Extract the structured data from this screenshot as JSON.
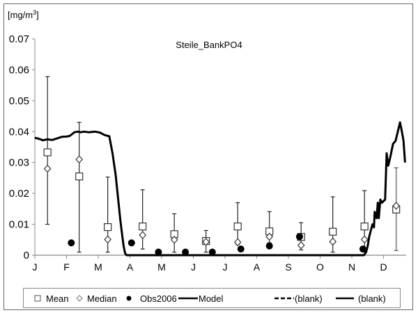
{
  "chart_data": {
    "type": "line",
    "title": "Steile_BankPO4",
    "ylabel": "[mg/m³]",
    "xlabel": "",
    "ylim": [
      0,
      0.07
    ],
    "yticks": [
      "0",
      "0.01",
      "0.02",
      "0.03",
      "0.04",
      "0.05",
      "0.06",
      "0.07"
    ],
    "ytick_values": [
      0,
      0.01,
      0.02,
      0.03,
      0.04,
      0.05,
      0.06,
      0.07
    ],
    "xticks": [
      "J",
      "F",
      "M",
      "A",
      "M",
      "J",
      "J",
      "A",
      "S",
      "O",
      "N",
      "D"
    ],
    "xlim_months": [
      0,
      11.7
    ],
    "grid": false,
    "legend_position": "bottom",
    "legend": [
      "Mean",
      "Median",
      "Obs2006",
      "Model",
      "(blank)",
      "(blank)"
    ],
    "stats": {
      "x_month": [
        0.4,
        1.4,
        2.3,
        3.4,
        4.4,
        5.4,
        6.4,
        7.4,
        8.4,
        9.4,
        10.4,
        11.4
      ],
      "mean": [
        0.0333,
        0.0255,
        0.0091,
        0.0093,
        0.0068,
        0.0046,
        0.0093,
        0.0077,
        0.0059,
        0.0076,
        0.0093,
        0.0148
      ],
      "median": [
        0.028,
        0.031,
        0.0051,
        0.0065,
        0.005,
        0.0043,
        0.0042,
        0.006,
        0.0032,
        0.0044,
        0.0051,
        0.016
      ],
      "err_low": [
        0.01,
        0.001,
        0.001,
        0.002,
        0.001,
        0.001,
        0.0034,
        0.004,
        0.0017,
        0.001,
        0.001,
        0.0015
      ],
      "err_high": [
        0.0578,
        0.043,
        0.0253,
        0.0212,
        0.0134,
        0.008,
        0.017,
        0.0141,
        0.0105,
        0.0189,
        0.0209,
        0.0283
      ]
    },
    "obs2006": {
      "x_month": [
        1.15,
        3.05,
        3.9,
        4.75,
        5.6,
        6.5,
        7.4,
        8.35,
        10.35
      ],
      "y": [
        0.004,
        0.004,
        0.001,
        0.001,
        0.001,
        0.002,
        0.003,
        0.006,
        0.002
      ]
    },
    "model": {
      "x_month": [
        0,
        0.1,
        0.25,
        0.4,
        0.55,
        0.7,
        0.85,
        1.0,
        1.1,
        1.25,
        1.35,
        1.45,
        1.55,
        1.7,
        1.9,
        2.05,
        2.2,
        2.35,
        2.45,
        2.55,
        2.6,
        2.65,
        2.7,
        2.75,
        2.8,
        2.85,
        2.9,
        2.95,
        3.0,
        3.1,
        3.5,
        4.0,
        5.0,
        6.0,
        7.0,
        8.0,
        9.0,
        10.0,
        10.3,
        10.38,
        10.45,
        10.5,
        10.55,
        10.6,
        10.65,
        10.7,
        10.72,
        10.78,
        10.82,
        10.85,
        10.9,
        10.95,
        11.05,
        11.1,
        11.15,
        11.22,
        11.3,
        11.38,
        11.45,
        11.52,
        11.58,
        11.63,
        11.68
      ],
      "y": [
        0.038,
        0.0378,
        0.0372,
        0.0375,
        0.0373,
        0.0378,
        0.0383,
        0.0384,
        0.0386,
        0.0398,
        0.04,
        0.0398,
        0.04,
        0.0398,
        0.04,
        0.0397,
        0.0389,
        0.0385,
        0.033,
        0.026,
        0.021,
        0.016,
        0.011,
        0.007,
        0.003,
        0.0005,
        0.0,
        0.0,
        0.0,
        0.0,
        0.0,
        0.0,
        0.0,
        0.0,
        0.0,
        0.0,
        0.0,
        0.0,
        0.0,
        0.0,
        0.001,
        0.003,
        0.006,
        0.008,
        0.01,
        0.009,
        0.014,
        0.012,
        0.017,
        0.012,
        0.018,
        0.017,
        0.018,
        0.033,
        0.029,
        0.032,
        0.036,
        0.037,
        0.04,
        0.043,
        0.04,
        0.037,
        0.03
      ]
    }
  }
}
